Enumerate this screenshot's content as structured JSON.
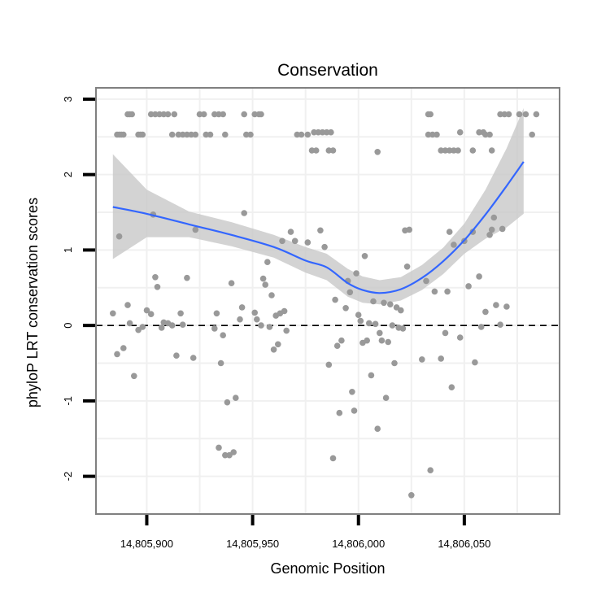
{
  "chart_data": {
    "type": "scatter",
    "title": "Conservation",
    "xlabel": "Genomic Position",
    "ylabel": "phyloP LRT conservation scores",
    "xlim": [
      14805876,
      14806095
    ],
    "ylim": [
      -2.5,
      3.15
    ],
    "x_ticks": [
      14805900,
      14805950,
      14806000,
      14806050
    ],
    "x_tick_labels": [
      "14,805,900",
      "14,805,950",
      "14,806,000",
      "14,806,050"
    ],
    "y_ticks": [
      -2,
      -1,
      0,
      1,
      2,
      3
    ],
    "y_tick_labels": [
      "-2",
      "-1",
      "0",
      "1",
      "2",
      "3"
    ],
    "grid": true,
    "reference_line": {
      "y": 0,
      "style": "dashed",
      "color": "#000000"
    },
    "colors": {
      "points": "#999999",
      "smooth_line": "#3366ff",
      "confidence_band": "#c8c8c8",
      "panel_border": "#808080",
      "grid": "#f0f0f0"
    },
    "series": [
      {
        "name": "phyloP scores",
        "kind": "points",
        "points": [
          [
            14805886,
            2.53
          ],
          [
            14805887,
            2.53
          ],
          [
            14805888,
            2.53
          ],
          [
            14805889,
            2.53
          ],
          [
            14805891,
            2.8
          ],
          [
            14805892,
            2.8
          ],
          [
            14805893,
            2.8
          ],
          [
            14805896,
            2.53
          ],
          [
            14805897,
            2.53
          ],
          [
            14805898,
            2.53
          ],
          [
            14805902,
            2.8
          ],
          [
            14805904,
            2.8
          ],
          [
            14805906,
            2.8
          ],
          [
            14805908,
            2.8
          ],
          [
            14805910,
            2.8
          ],
          [
            14805912,
            2.53
          ],
          [
            14805913,
            2.8
          ],
          [
            14805915,
            2.53
          ],
          [
            14805917,
            2.53
          ],
          [
            14805919,
            2.53
          ],
          [
            14805921,
            2.53
          ],
          [
            14805923,
            2.53
          ],
          [
            14805925,
            2.8
          ],
          [
            14805927,
            2.8
          ],
          [
            14805928,
            2.53
          ],
          [
            14805930,
            2.53
          ],
          [
            14805932,
            2.8
          ],
          [
            14805934,
            2.8
          ],
          [
            14805936,
            2.8
          ],
          [
            14805937,
            2.53
          ],
          [
            14805946,
            2.8
          ],
          [
            14805947,
            2.53
          ],
          [
            14805949,
            2.53
          ],
          [
            14805951,
            2.8
          ],
          [
            14805953,
            2.8
          ],
          [
            14805954,
            2.8
          ],
          [
            14805971,
            2.53
          ],
          [
            14805973,
            2.53
          ],
          [
            14805976,
            2.53
          ],
          [
            14805979,
            2.56
          ],
          [
            14805981,
            2.56
          ],
          [
            14805983,
            2.56
          ],
          [
            14805985,
            2.56
          ],
          [
            14805987,
            2.56
          ],
          [
            14805978,
            2.32
          ],
          [
            14805980,
            2.32
          ],
          [
            14805986,
            2.32
          ],
          [
            14805988,
            2.32
          ],
          [
            14806009,
            2.3
          ],
          [
            14806033,
            2.8
          ],
          [
            14806034,
            2.8
          ],
          [
            14806033,
            2.53
          ],
          [
            14806035,
            2.53
          ],
          [
            14806037,
            2.53
          ],
          [
            14806039,
            2.32
          ],
          [
            14806041,
            2.32
          ],
          [
            14806043,
            2.32
          ],
          [
            14806045,
            2.32
          ],
          [
            14806047,
            2.32
          ],
          [
            14806048,
            2.56
          ],
          [
            14806054,
            2.32
          ],
          [
            14806057,
            2.56
          ],
          [
            14806059,
            2.56
          ],
          [
            14806060,
            2.53
          ],
          [
            14806062,
            2.53
          ],
          [
            14806063,
            2.32
          ],
          [
            14806067,
            2.8
          ],
          [
            14806069,
            2.8
          ],
          [
            14806071,
            2.8
          ],
          [
            14806076,
            2.8
          ],
          [
            14806079,
            2.8
          ],
          [
            14806082,
            2.53
          ],
          [
            14806084,
            2.8
          ],
          [
            14805884,
            0.16
          ],
          [
            14805886,
            -0.38
          ],
          [
            14805887,
            1.18
          ],
          [
            14805889,
            -0.3
          ],
          [
            14805891,
            0.27
          ],
          [
            14805892,
            0.03
          ],
          [
            14805894,
            -0.67
          ],
          [
            14805896,
            -0.06
          ],
          [
            14805898,
            -0.02
          ],
          [
            14805900,
            0.2
          ],
          [
            14805902,
            0.15
          ],
          [
            14805903,
            1.47
          ],
          [
            14805904,
            0.64
          ],
          [
            14805905,
            0.51
          ],
          [
            14805907,
            -0.03
          ],
          [
            14805908,
            0.04
          ],
          [
            14805910,
            0.03
          ],
          [
            14805912,
            0.0
          ],
          [
            14805914,
            -0.4
          ],
          [
            14805916,
            0.16
          ],
          [
            14805917,
            0.01
          ],
          [
            14805919,
            0.63
          ],
          [
            14805922,
            -0.43
          ],
          [
            14805923,
            1.27
          ],
          [
            14805932,
            -0.04
          ],
          [
            14805933,
            0.16
          ],
          [
            14805934,
            -1.62
          ],
          [
            14805935,
            -0.5
          ],
          [
            14805936,
            -0.13
          ],
          [
            14805937,
            -1.72
          ],
          [
            14805938,
            -1.02
          ],
          [
            14805939,
            -1.72
          ],
          [
            14805940,
            0.56
          ],
          [
            14805941,
            -1.68
          ],
          [
            14805942,
            -0.96
          ],
          [
            14805944,
            0.08
          ],
          [
            14805945,
            0.24
          ],
          [
            14805946,
            1.49
          ],
          [
            14805951,
            0.17
          ],
          [
            14805952,
            0.08
          ],
          [
            14805954,
            0.0
          ],
          [
            14805955,
            0.62
          ],
          [
            14805956,
            0.54
          ],
          [
            14805957,
            0.84
          ],
          [
            14805958,
            -0.02
          ],
          [
            14805959,
            0.4
          ],
          [
            14805960,
            -0.32
          ],
          [
            14805961,
            0.13
          ],
          [
            14805962,
            -0.25
          ],
          [
            14805963,
            0.16
          ],
          [
            14805964,
            1.12
          ],
          [
            14805965,
            0.19
          ],
          [
            14805966,
            -0.07
          ],
          [
            14805968,
            1.24
          ],
          [
            14805970,
            1.12
          ],
          [
            14805976,
            1.1
          ],
          [
            14805982,
            1.26
          ],
          [
            14805984,
            1.04
          ],
          [
            14805986,
            -0.52
          ],
          [
            14805988,
            -1.76
          ],
          [
            14805989,
            0.34
          ],
          [
            14805990,
            -0.27
          ],
          [
            14805991,
            -1.16
          ],
          [
            14805992,
            -0.2
          ],
          [
            14805994,
            0.23
          ],
          [
            14805995,
            0.59
          ],
          [
            14805996,
            0.44
          ],
          [
            14805997,
            -0.88
          ],
          [
            14805998,
            -1.13
          ],
          [
            14805999,
            0.69
          ],
          [
            14806000,
            0.14
          ],
          [
            14806001,
            0.06
          ],
          [
            14806002,
            -0.23
          ],
          [
            14806003,
            0.92
          ],
          [
            14806004,
            -0.2
          ],
          [
            14806005,
            0.03
          ],
          [
            14806006,
            -0.66
          ],
          [
            14806007,
            0.32
          ],
          [
            14806008,
            0.02
          ],
          [
            14806009,
            -1.37
          ],
          [
            14806010,
            -0.1
          ],
          [
            14806011,
            -0.2
          ],
          [
            14806012,
            0.3
          ],
          [
            14806013,
            -0.96
          ],
          [
            14806014,
            -0.22
          ],
          [
            14806015,
            0.28
          ],
          [
            14806016,
            0.0
          ],
          [
            14806017,
            -0.5
          ],
          [
            14806018,
            0.24
          ],
          [
            14806019,
            -0.03
          ],
          [
            14806020,
            0.2
          ],
          [
            14806021,
            -0.04
          ],
          [
            14806022,
            1.26
          ],
          [
            14806023,
            0.78
          ],
          [
            14806024,
            1.27
          ],
          [
            14806025,
            -2.25
          ],
          [
            14806030,
            -0.45
          ],
          [
            14806032,
            0.59
          ],
          [
            14806034,
            -1.92
          ],
          [
            14806036,
            0.45
          ],
          [
            14806039,
            -0.44
          ],
          [
            14806041,
            -0.1
          ],
          [
            14806042,
            0.45
          ],
          [
            14806043,
            1.24
          ],
          [
            14806044,
            -0.82
          ],
          [
            14806045,
            1.07
          ],
          [
            14806048,
            -0.16
          ],
          [
            14806050,
            1.12
          ],
          [
            14806052,
            0.52
          ],
          [
            14806054,
            1.24
          ],
          [
            14806055,
            -0.49
          ],
          [
            14806057,
            0.65
          ],
          [
            14806058,
            -0.02
          ],
          [
            14806060,
            0.18
          ],
          [
            14806062,
            1.2
          ],
          [
            14806063,
            1.27
          ],
          [
            14806064,
            1.43
          ],
          [
            14806065,
            0.27
          ],
          [
            14806067,
            0.01
          ],
          [
            14806068,
            1.28
          ],
          [
            14806070,
            0.25
          ]
        ]
      },
      {
        "name": "loess fit",
        "kind": "line",
        "x": [
          14805884,
          14805900,
          14805920,
          14805940,
          14805960,
          14805975,
          14805985,
          14805995,
          14806002,
          14806010,
          14806020,
          14806030,
          14806040,
          14806050,
          14806060,
          14806070,
          14806078
        ],
        "y": [
          1.57,
          1.48,
          1.34,
          1.2,
          1.04,
          0.86,
          0.77,
          0.56,
          0.47,
          0.43,
          0.48,
          0.63,
          0.85,
          1.13,
          1.47,
          1.85,
          2.17
        ],
        "lower": [
          0.88,
          1.17,
          1.17,
          1.05,
          0.9,
          0.7,
          0.6,
          0.38,
          0.3,
          0.28,
          0.33,
          0.47,
          0.68,
          0.95,
          1.15,
          1.3,
          1.48
        ],
        "upper": [
          2.27,
          1.8,
          1.51,
          1.37,
          1.2,
          1.04,
          0.95,
          0.75,
          0.65,
          0.6,
          0.64,
          0.8,
          1.03,
          1.35,
          1.8,
          2.35,
          2.88
        ]
      }
    ]
  }
}
